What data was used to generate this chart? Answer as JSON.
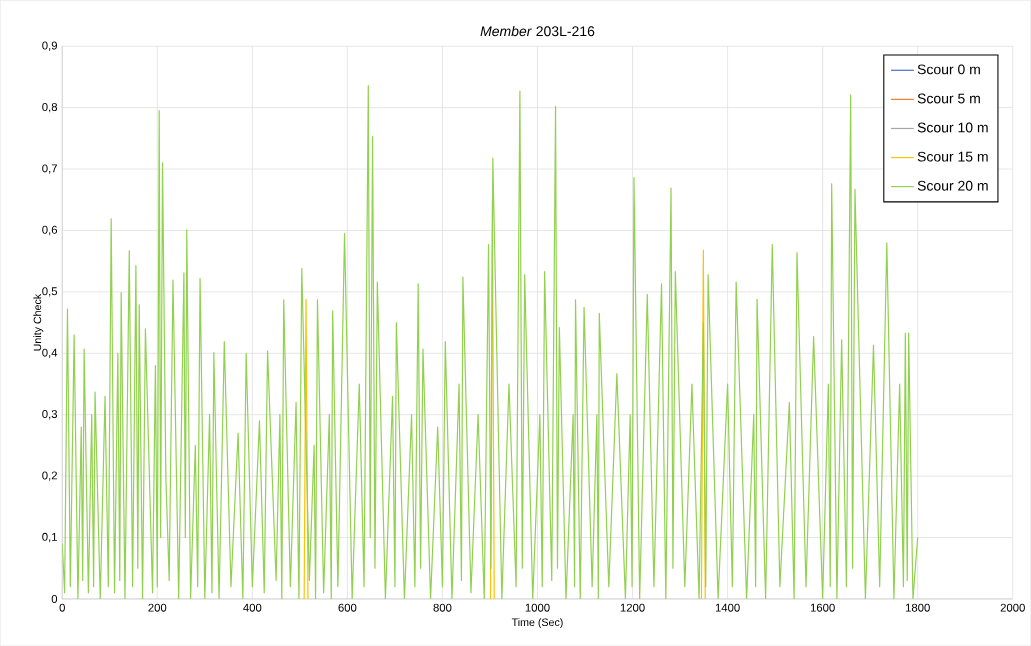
{
  "chart_data": {
    "type": "line",
    "title": "*Member* 203L-216",
    "xlabel": "Time (Sec)",
    "ylabel": "Unity Check",
    "xlim": [
      0,
      2000
    ],
    "xticks": [
      0,
      200,
      400,
      600,
      800,
      1000,
      1200,
      1400,
      1600,
      1800,
      2000
    ],
    "ylim": [
      0,
      0.9
    ],
    "yticks": [
      {
        "value": 0,
        "label": "0"
      },
      {
        "value": 0.1,
        "label": "0,1"
      },
      {
        "value": 0.2,
        "label": "0,2"
      },
      {
        "value": 0.3,
        "label": "0,3"
      },
      {
        "value": 0.4,
        "label": "0,4"
      },
      {
        "value": 0.5,
        "label": "0,5"
      },
      {
        "value": 0.6,
        "label": "0,6"
      },
      {
        "value": 0.7,
        "label": "0,7"
      },
      {
        "value": 0.8,
        "label": "0,8"
      },
      {
        "value": 0.9,
        "label": "0,9"
      }
    ],
    "grid": true,
    "legend": "top right",
    "marker": "none",
    "line_style": "solid",
    "x": [
      0,
      5,
      11,
      17,
      25,
      33,
      40,
      43,
      46,
      55,
      62,
      66,
      69,
      80,
      90,
      97,
      103,
      110,
      117,
      121,
      124,
      132,
      141,
      148,
      155,
      159,
      162,
      169,
      175,
      190,
      196,
      200,
      204,
      207,
      211,
      218,
      225,
      233,
      245,
      256,
      259,
      262,
      270,
      280,
      285,
      290,
      300,
      310,
      315,
      319,
      330,
      341,
      355,
      370,
      380,
      387,
      400,
      415,
      425,
      432,
      450,
      458,
      462,
      466,
      480,
      492,
      498,
      504,
      520,
      530,
      533,
      537,
      550,
      562,
      566,
      569,
      580,
      594,
      610,
      625,
      635,
      644,
      648,
      653,
      658,
      663,
      680,
      695,
      700,
      703,
      720,
      735,
      742,
      749,
      754,
      759,
      775,
      790,
      800,
      806,
      820,
      835,
      840,
      843,
      860,
      875,
      888,
      897,
      902,
      906,
      925,
      940,
      955,
      963,
      968,
      973,
      990,
      1005,
      1010,
      1015,
      1030,
      1038,
      1042,
      1046,
      1060,
      1075,
      1078,
      1080,
      1090,
      1098,
      1115,
      1125,
      1128,
      1130,
      1150,
      1167,
      1185,
      1195,
      1199,
      1203,
      1215,
      1231,
      1245,
      1261,
      1270,
      1281,
      1285,
      1290,
      1310,
      1325,
      1340,
      1349,
      1354,
      1359,
      1380,
      1400,
      1410,
      1418,
      1440,
      1455,
      1459,
      1462,
      1480,
      1494,
      1510,
      1530,
      1540,
      1546,
      1565,
      1581,
      1600,
      1612,
      1616,
      1619,
      1630,
      1640,
      1650,
      1659,
      1663,
      1668,
      1690,
      1707,
      1720,
      1735,
      1750,
      1762,
      1770,
      1774,
      1778,
      1781,
      1790,
      1800
    ],
    "series": [
      {
        "name": "Scour 0 m",
        "color": "#4472c4",
        "values": [
          null,
          null,
          null,
          null,
          null,
          null,
          null,
          null,
          null,
          null,
          null,
          null,
          null,
          null,
          null,
          null,
          null,
          null,
          null,
          null,
          null,
          null,
          null,
          null,
          null,
          null,
          null,
          null,
          null,
          null,
          null,
          null,
          null,
          null,
          null,
          null,
          null,
          null,
          null,
          null,
          null,
          null,
          null,
          null,
          null,
          null,
          null,
          null,
          null,
          null,
          null,
          null,
          null,
          null,
          null,
          null,
          null,
          null,
          null,
          null,
          null,
          null,
          null,
          null,
          null,
          null,
          null,
          null,
          null,
          null,
          null,
          null,
          null,
          null,
          null,
          null,
          null,
          null,
          null,
          null,
          null,
          null,
          null,
          null,
          null,
          null,
          null,
          null,
          null,
          null,
          null,
          null,
          null,
          null,
          null,
          null,
          null,
          null,
          null,
          null,
          null,
          null,
          null,
          null,
          null,
          null,
          null,
          null,
          null,
          null,
          null,
          null,
          null,
          null,
          null,
          null,
          null,
          null,
          null,
          null,
          null,
          null,
          null,
          null,
          null,
          null,
          null,
          null,
          null,
          null,
          null,
          null,
          null,
          null,
          null,
          null,
          null,
          null,
          null,
          null,
          null,
          null,
          null,
          null,
          null,
          null,
          null,
          null,
          null,
          null,
          null,
          null,
          null,
          null,
          null,
          null,
          null,
          null,
          null,
          null,
          null,
          null,
          null,
          null,
          null,
          null,
          null,
          null,
          null,
          null,
          null,
          null,
          null,
          null,
          null,
          null,
          null,
          null,
          null,
          null,
          null,
          null,
          null,
          null,
          null,
          null,
          null,
          null,
          null,
          null,
          null,
          null
        ]
      },
      {
        "name": "Scour 5 m",
        "color": "#ed7d31",
        "values": [
          null,
          null,
          null,
          null,
          null,
          null,
          null,
          null,
          null,
          null,
          null,
          null,
          null,
          null,
          null,
          null,
          null,
          null,
          null,
          null,
          null,
          null,
          null,
          null,
          null,
          null,
          null,
          null,
          null,
          null,
          null,
          null,
          null,
          null,
          null,
          null,
          null,
          null,
          null,
          null,
          null,
          null,
          null,
          null,
          null,
          null,
          null,
          null,
          null,
          null,
          null,
          null,
          null,
          null,
          null,
          null,
          null,
          null,
          null,
          null,
          null,
          null,
          null,
          null,
          null,
          null,
          null,
          null,
          null,
          null,
          null,
          null,
          null,
          null,
          null,
          null,
          null,
          null,
          null,
          null,
          null,
          null,
          null,
          null,
          null,
          null,
          null,
          null,
          null,
          null,
          null,
          null,
          null,
          null,
          null,
          null,
          null,
          null,
          null,
          null,
          null,
          null,
          null,
          null,
          null,
          null,
          null,
          null,
          null,
          null,
          null,
          null,
          null,
          null,
          null,
          null,
          null,
          null,
          null,
          null,
          null,
          null,
          null,
          null,
          null,
          null,
          null,
          null,
          null,
          null,
          null,
          null,
          null,
          null,
          null,
          null,
          null,
          null,
          null,
          null,
          null,
          null,
          null,
          null,
          null,
          null,
          null,
          null,
          null,
          null,
          null,
          null,
          null,
          null,
          null,
          null,
          null,
          null,
          null,
          null,
          null,
          null,
          null,
          null,
          null,
          null,
          null,
          null,
          null,
          null,
          null,
          null,
          null,
          null,
          null,
          null,
          null,
          null,
          null,
          null,
          null,
          null,
          null,
          null,
          null,
          null,
          null,
          null,
          null,
          null,
          null,
          null
        ]
      },
      {
        "name": "Scour 10 m",
        "color": "#a5a5a5",
        "values": [
          null,
          null,
          null,
          null,
          null,
          null,
          null,
          null,
          null,
          null,
          null,
          null,
          null,
          null,
          null,
          null,
          null,
          null,
          null,
          null,
          null,
          null,
          null,
          null,
          null,
          null,
          null,
          null,
          null,
          null,
          null,
          null,
          null,
          null,
          null,
          null,
          null,
          null,
          null,
          null,
          null,
          null,
          null,
          null,
          null,
          null,
          null,
          null,
          null,
          null,
          null,
          null,
          null,
          null,
          null,
          null,
          null,
          null,
          null,
          null,
          null,
          null,
          null,
          null,
          null,
          null,
          null,
          null,
          null,
          null,
          null,
          null,
          null,
          null,
          null,
          null,
          null,
          null,
          null,
          null,
          null,
          null,
          null,
          null,
          null,
          null,
          null,
          null,
          null,
          null,
          null,
          null,
          null,
          null,
          null,
          null,
          null,
          null,
          null,
          null,
          null,
          null,
          null,
          null,
          null,
          null,
          null,
          null,
          null,
          null,
          null,
          null,
          null,
          null,
          null,
          null,
          null,
          null,
          null,
          null,
          null,
          null,
          null,
          null,
          null,
          null,
          null,
          null,
          null,
          null,
          null,
          null,
          null,
          null,
          null,
          null,
          null,
          null,
          null,
          null,
          null,
          null,
          null,
          null,
          null,
          null,
          null,
          null,
          null,
          null,
          null,
          null,
          null,
          null,
          null,
          null,
          null,
          null,
          null,
          null,
          null,
          null,
          null,
          null,
          null,
          null,
          null,
          null,
          null,
          null,
          null,
          null,
          null,
          null,
          null,
          null,
          null,
          null,
          null,
          null,
          null,
          null,
          null,
          null,
          null,
          null,
          null,
          null,
          null,
          null,
          null,
          null
        ]
      },
      {
        "name": "Scour 15 m",
        "color": "#ffc000",
        "x": [
          509,
          513,
          517,
          700,
          901,
          905,
          909,
          1100,
          1345,
          1349,
          1353
        ],
        "values": [
          0.0,
          0.488,
          0.0,
          null,
          0.0,
          0.65,
          0.0,
          null,
          0.0,
          0.568,
          0.0
        ]
      },
      {
        "name": "Scour 20 m",
        "color": "#92d050",
        "values": [
          0.09,
          0.01,
          0.472,
          0.02,
          0.43,
          0.0,
          0.28,
          0.03,
          0.407,
          0.01,
          0.3,
          0.02,
          0.337,
          0.0,
          0.33,
          0.02,
          0.619,
          0.01,
          0.4,
          0.03,
          0.499,
          0.0,
          0.567,
          0.02,
          0.543,
          0.05,
          0.479,
          0.0,
          0.44,
          0.01,
          0.38,
          0.02,
          0.795,
          0.1,
          0.71,
          0.2,
          0.03,
          0.519,
          0.0,
          0.531,
          0.1,
          0.601,
          0.0,
          0.25,
          0.02,
          0.522,
          0.0,
          0.3,
          0.01,
          0.401,
          0.0,
          0.419,
          0.02,
          0.27,
          0.0,
          0.4,
          0.02,
          0.29,
          0.01,
          0.404,
          0.03,
          0.3,
          0.0,
          0.487,
          0.02,
          0.32,
          0.0,
          0.538,
          0.03,
          0.25,
          0.0,
          0.487,
          0.01,
          0.3,
          0.0,
          0.469,
          0.02,
          0.595,
          0.0,
          0.35,
          0.02,
          0.836,
          0.1,
          0.753,
          0.05,
          0.516,
          0.0,
          0.33,
          0.02,
          0.45,
          0.0,
          0.3,
          0.02,
          0.513,
          0.05,
          0.407,
          0.0,
          0.28,
          0.02,
          0.419,
          0.0,
          0.35,
          0.03,
          0.524,
          0.01,
          0.3,
          0.0,
          0.577,
          0.05,
          0.718,
          0.0,
          0.35,
          0.02,
          0.827,
          0.05,
          0.528,
          0.0,
          0.3,
          0.02,
          0.533,
          0.03,
          0.802,
          0.05,
          0.442,
          0.0,
          0.3,
          0.02,
          0.487,
          0.0,
          0.475,
          0.02,
          0.3,
          0.0,
          0.465,
          0.02,
          0.367,
          0.0,
          0.3,
          0.02,
          0.686,
          0.0,
          0.496,
          0.02,
          0.513,
          0.0,
          0.669,
          0.05,
          0.533,
          0.02,
          0.35,
          0.0,
          0.45,
          0.02,
          0.528,
          0.0,
          0.35,
          0.02,
          0.516,
          0.0,
          0.3,
          0.02,
          0.488,
          0.0,
          0.577,
          0.02,
          0.32,
          0.0,
          0.564,
          0.02,
          0.427,
          0.0,
          0.35,
          0.02,
          0.676,
          0.0,
          0.422,
          0.02,
          0.821,
          0.05,
          0.667,
          0.0,
          0.413,
          0.02,
          0.58,
          0.0,
          0.35,
          0.02,
          0.433,
          0.03,
          0.433,
          0.0,
          0.1
        ]
      }
    ]
  }
}
